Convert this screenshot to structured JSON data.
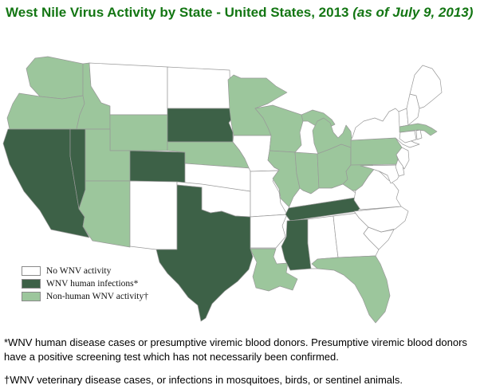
{
  "title": {
    "main": "West Nile Virus Activity by State - United States, 2013 ",
    "suffix": "(as of July 9, 2013)",
    "color": "#137613"
  },
  "legend": {
    "items": [
      {
        "label": "No WNV activity",
        "status": "none",
        "color": "#ffffff"
      },
      {
        "label": "WNV human infections*",
        "status": "human",
        "color": "#3d6147"
      },
      {
        "label": "Non-human WNV activity†",
        "status": "nonhuman",
        "color": "#9cc69c"
      }
    ]
  },
  "footnotes": {
    "first": "*WNV human disease cases or presumptive viremic blood donors. Presumptive viremic blood donors have a positive screening test which has not necessarily been confirmed.",
    "second": "†WNV veterinary disease cases, or infections in mosquitoes, birds, or sentinel animals."
  },
  "map": {
    "border_color": "#999999",
    "colors": {
      "none": "#ffffff",
      "human": "#3d6147",
      "nonhuman": "#9cc69c"
    },
    "states": [
      {
        "id": "WA",
        "status": "nonhuman"
      },
      {
        "id": "OR",
        "status": "nonhuman"
      },
      {
        "id": "CA",
        "status": "human"
      },
      {
        "id": "NV",
        "status": "human"
      },
      {
        "id": "ID",
        "status": "nonhuman"
      },
      {
        "id": "MT",
        "status": "none"
      },
      {
        "id": "WY",
        "status": "nonhuman"
      },
      {
        "id": "UT",
        "status": "nonhuman"
      },
      {
        "id": "CO",
        "status": "human"
      },
      {
        "id": "AZ",
        "status": "nonhuman"
      },
      {
        "id": "NM",
        "status": "none"
      },
      {
        "id": "ND",
        "status": "none"
      },
      {
        "id": "SD",
        "status": "human"
      },
      {
        "id": "NE",
        "status": "nonhuman"
      },
      {
        "id": "KS",
        "status": "none"
      },
      {
        "id": "OK",
        "status": "none"
      },
      {
        "id": "TX",
        "status": "human"
      },
      {
        "id": "MN",
        "status": "nonhuman"
      },
      {
        "id": "IA",
        "status": "none"
      },
      {
        "id": "MO",
        "status": "none"
      },
      {
        "id": "AR",
        "status": "none"
      },
      {
        "id": "LA",
        "status": "nonhuman"
      },
      {
        "id": "WI",
        "status": "nonhuman"
      },
      {
        "id": "MI_UP",
        "status": "nonhuman"
      },
      {
        "id": "MI_LP",
        "status": "nonhuman"
      },
      {
        "id": "IL",
        "status": "nonhuman"
      },
      {
        "id": "IN",
        "status": "nonhuman"
      },
      {
        "id": "OH",
        "status": "nonhuman"
      },
      {
        "id": "KY",
        "status": "none"
      },
      {
        "id": "TN",
        "status": "human"
      },
      {
        "id": "MS",
        "status": "human"
      },
      {
        "id": "AL",
        "status": "none"
      },
      {
        "id": "GA",
        "status": "none"
      },
      {
        "id": "FL",
        "status": "nonhuman"
      },
      {
        "id": "SC",
        "status": "none"
      },
      {
        "id": "NC",
        "status": "none"
      },
      {
        "id": "VA",
        "status": "none"
      },
      {
        "id": "WV",
        "status": "nonhuman"
      },
      {
        "id": "PA",
        "status": "nonhuman"
      },
      {
        "id": "NY",
        "status": "none"
      },
      {
        "id": "NJ",
        "status": "none"
      },
      {
        "id": "MD",
        "status": "none"
      },
      {
        "id": "DE",
        "status": "none"
      },
      {
        "id": "CT",
        "status": "none"
      },
      {
        "id": "RI",
        "status": "none"
      },
      {
        "id": "MA",
        "status": "nonhuman"
      },
      {
        "id": "VT",
        "status": "none"
      },
      {
        "id": "NH",
        "status": "none"
      },
      {
        "id": "ME",
        "status": "none"
      }
    ]
  }
}
